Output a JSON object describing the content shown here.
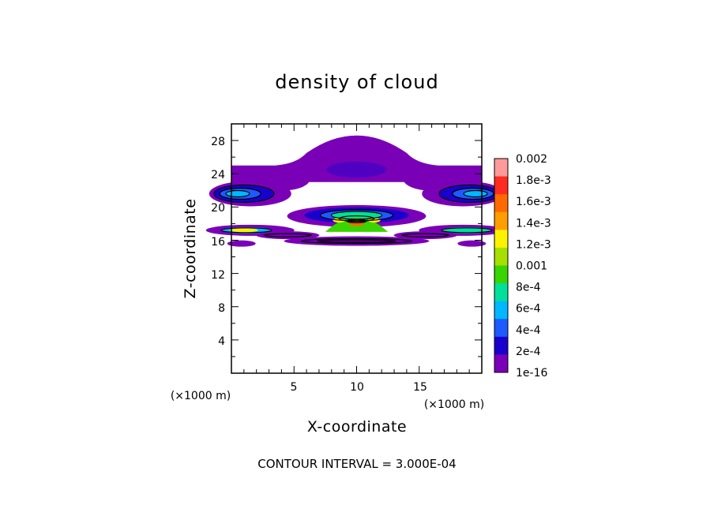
{
  "chart_data": {
    "type": "heatmap",
    "title": "density of cloud",
    "xlabel": "X-coordinate",
    "ylabel": "Z-coordinate",
    "x_unit_left": "(×1000 m)",
    "x_unit_right": "(×1000 m)",
    "xlim": [
      0,
      20
    ],
    "ylim": [
      0,
      30
    ],
    "x_ticks": [
      "5",
      "10",
      "15"
    ],
    "y_ticks": [
      "4",
      "8",
      "12",
      "16",
      "20",
      "24",
      "28"
    ],
    "colorbar": {
      "labels": [
        "0.002",
        "1.8e-3",
        "1.6e-3",
        "1.4e-3",
        "1.2e-3",
        "0.001",
        "8e-4",
        "6e-4",
        "4e-4",
        "2e-4",
        "1e-16"
      ],
      "colors": [
        "#ff9a9a",
        "#ff2a20",
        "#ff6a00",
        "#ff9e00",
        "#fff200",
        "#a6e000",
        "#3ad400",
        "#00e09a",
        "#00b8ff",
        "#1e5aff",
        "#1a00cc",
        "#7a00b8"
      ]
    },
    "contour_interval": "CONTOUR INTERVAL = 3.000E-04"
  }
}
